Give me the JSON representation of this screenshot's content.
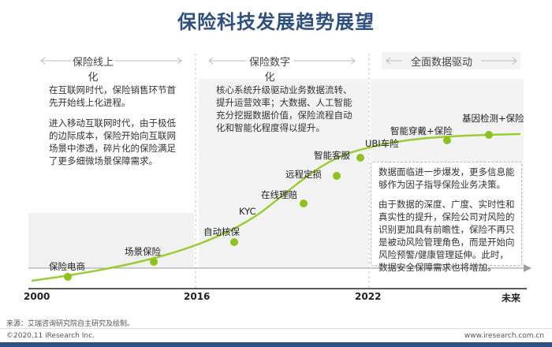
{
  "title": "保险科技发展趋势展望",
  "phases": [
    {
      "label": "保险线上化"
    },
    {
      "label": "保险数字化"
    },
    {
      "label": "全面数据驱动"
    }
  ],
  "paragraphs": {
    "online_1": "在互联网时代，保险销售环节首先开始线上化进程。",
    "online_2": "进入移动互联网时代，由于极低的边际成本，保险开始向互联网场景中渗透，碎片化的保险满足了更多细微场景保障需求。",
    "digital_1": "核心系统升级驱动业务数据流转、提升运营效率；大数据、人工智能充分挖掘数据价值，保险流程自动化和智能化程度得以提升。",
    "data_1": "数据面临进一步爆发，更多信息能够作为因子指导保险业务决策。",
    "data_2": "由于数据的深度、广度、实时性和真实性的提升，保险公司对风险的识别更加具有前瞻性，保险不再只是被动风险管理角色，而是开始向风险预警/健康管理延伸。此时，数据安全保障需求也将增加。"
  },
  "stages": [
    {
      "label": "保险电商"
    },
    {
      "label": "场景保险"
    },
    {
      "label": "自动核保"
    },
    {
      "label": "KYC"
    },
    {
      "label": "在线理赔"
    },
    {
      "label": "远程定损"
    },
    {
      "label": "智能客服"
    },
    {
      "label": "UBI车险"
    },
    {
      "label": "智能穿戴+保险"
    },
    {
      "label": "基因检测+保险"
    }
  ],
  "years": [
    {
      "label": "2000"
    },
    {
      "label": "2016"
    },
    {
      "label": "2022"
    },
    {
      "label": "未来"
    }
  ],
  "source": "来源：艾瑞咨询研究院自主研究及绘制。",
  "footer_left": "©2020.11 iResearch Inc.",
  "footer_right": "www.iresearch.com.cn",
  "colors": {
    "title": "#2f4f7f",
    "curve": "#9acd32",
    "dot": "#8dc21f",
    "band": "#f1f1f1"
  }
}
